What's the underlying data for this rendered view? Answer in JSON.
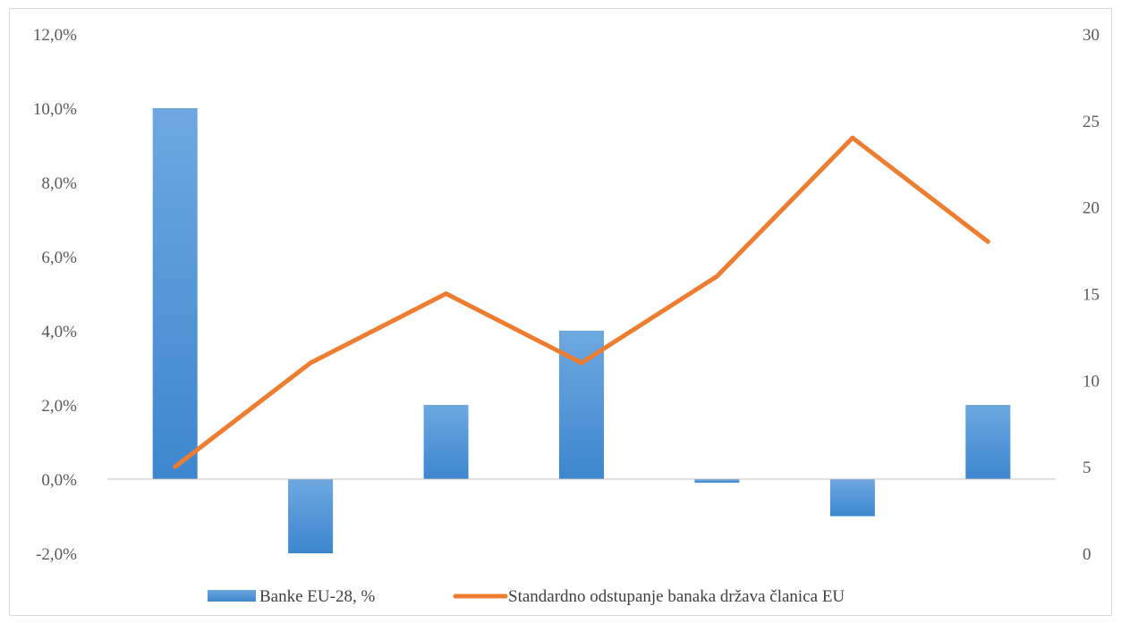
{
  "chart_data": {
    "type": "bar",
    "categories": [
      "",
      "",
      "",
      "",
      "",
      "",
      ""
    ],
    "series": [
      {
        "name": "Banke EU-28, %",
        "type": "bar",
        "axis": "left",
        "color": "#4a8fd6",
        "values": [
          10.0,
          -2.0,
          2.0,
          4.0,
          -0.1,
          -1.0,
          2.0
        ]
      },
      {
        "name": "Standardno odstupanje banaka država članica EU",
        "type": "line",
        "axis": "right",
        "color": "#ed7d31",
        "values": [
          5,
          11,
          15,
          11,
          16,
          24,
          18
        ]
      }
    ],
    "y_left": {
      "ylim": [
        -2.0,
        12.0
      ],
      "ticks": [
        -2.0,
        0.0,
        2.0,
        4.0,
        6.0,
        8.0,
        10.0,
        12.0
      ],
      "tick_labels": [
        "-2,0%",
        "0,0%",
        "2,0%",
        "4,0%",
        "6,0%",
        "8,0%",
        "10,0%",
        "12,0%"
      ]
    },
    "y_right": {
      "ylim": [
        0,
        30
      ],
      "ticks": [
        0,
        5,
        10,
        15,
        20,
        25,
        30
      ],
      "tick_labels": [
        "0",
        "5",
        "10",
        "15",
        "20",
        "25",
        "30"
      ]
    },
    "grid": false,
    "legend_position": "bottom"
  }
}
